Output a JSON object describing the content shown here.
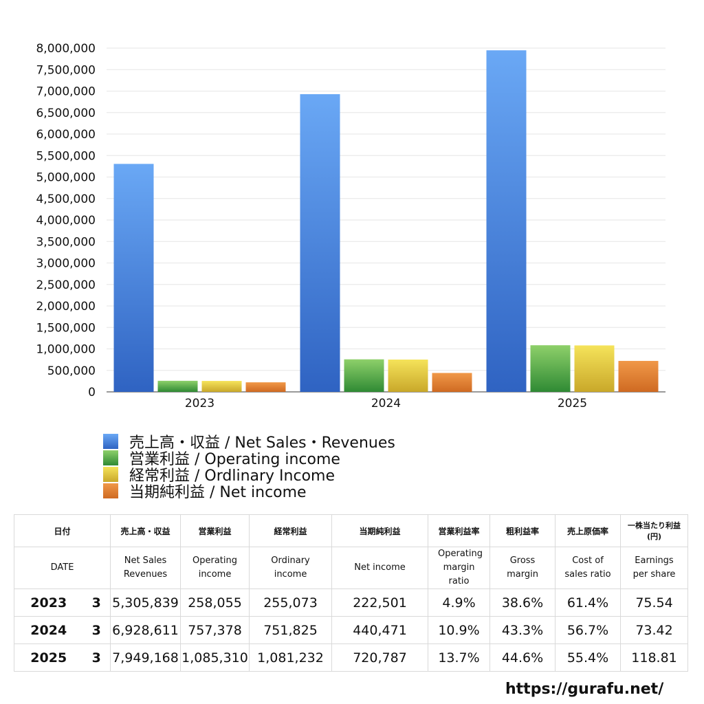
{
  "chart_data": {
    "type": "bar",
    "categories": [
      "2023",
      "2024",
      "2025"
    ],
    "series": [
      {
        "name": "売上高・収益 / Net Sales・Revenues",
        "values": [
          5305839,
          6928611,
          7949168
        ],
        "color_top": "#6aa8f5",
        "color_bottom": "#2f63c2"
      },
      {
        "name": "営業利益 / Operating income",
        "values": [
          258055,
          757378,
          1085310
        ],
        "color_top": "#8ed06a",
        "color_bottom": "#2f8a34"
      },
      {
        "name": "経常利益 / Ordlinary Income",
        "values": [
          255073,
          751825,
          1081232
        ],
        "color_top": "#f5e35a",
        "color_bottom": "#c9a82a"
      },
      {
        "name": "当期純利益 / Net income",
        "values": [
          222501,
          440471,
          720787
        ],
        "color_top": "#f09848",
        "color_bottom": "#cf6a22"
      }
    ],
    "yticks": [
      "0",
      "500,000",
      "1,000,000",
      "1,500,000",
      "2,000,000",
      "2,500,000",
      "3,000,000",
      "3,500,000",
      "4,000,000",
      "4,500,000",
      "5,000,000",
      "5,500,000",
      "6,000,000",
      "6,500,000",
      "7,000,000",
      "7,500,000",
      "8,000,000"
    ],
    "ylim": [
      0,
      8000000
    ],
    "grid": true,
    "legend_position": "bottom-left"
  },
  "table": {
    "header_jp": [
      "日付",
      "売上高・収益",
      "営業利益",
      "経常利益",
      "当期純利益",
      "営業利益率",
      "粗利益率",
      "売上原価率",
      "一株当たり利益(円)"
    ],
    "header_en": [
      "DATE",
      "Net Sales Revenues",
      "Operating income",
      "Ordinary income",
      "Net income",
      "Operating margin ratio",
      "Gross margin",
      "Cost of sales ratio",
      "Earnings per share"
    ],
    "rows": [
      {
        "year": "2023",
        "month": "3",
        "sales": "5,305,839",
        "operating": "258,055",
        "ordinary": "255,073",
        "net": "222,501",
        "op_margin": "4.9%",
        "gross_margin": "38.6%",
        "cost_ratio": "61.4%",
        "eps": "75.54"
      },
      {
        "year": "2024",
        "month": "3",
        "sales": "6,928,611",
        "operating": "757,378",
        "ordinary": "751,825",
        "net": "440,471",
        "op_margin": "10.9%",
        "gross_margin": "43.3%",
        "cost_ratio": "56.7%",
        "eps": "73.42"
      },
      {
        "year": "2025",
        "month": "3",
        "sales": "7,949,168",
        "operating": "1,085,310",
        "ordinary": "1,081,232",
        "net": "720,787",
        "op_margin": "13.7%",
        "gross_margin": "44.6%",
        "cost_ratio": "55.4%",
        "eps": "118.81"
      }
    ]
  },
  "footer": {
    "url": "https://gurafu.net/"
  }
}
